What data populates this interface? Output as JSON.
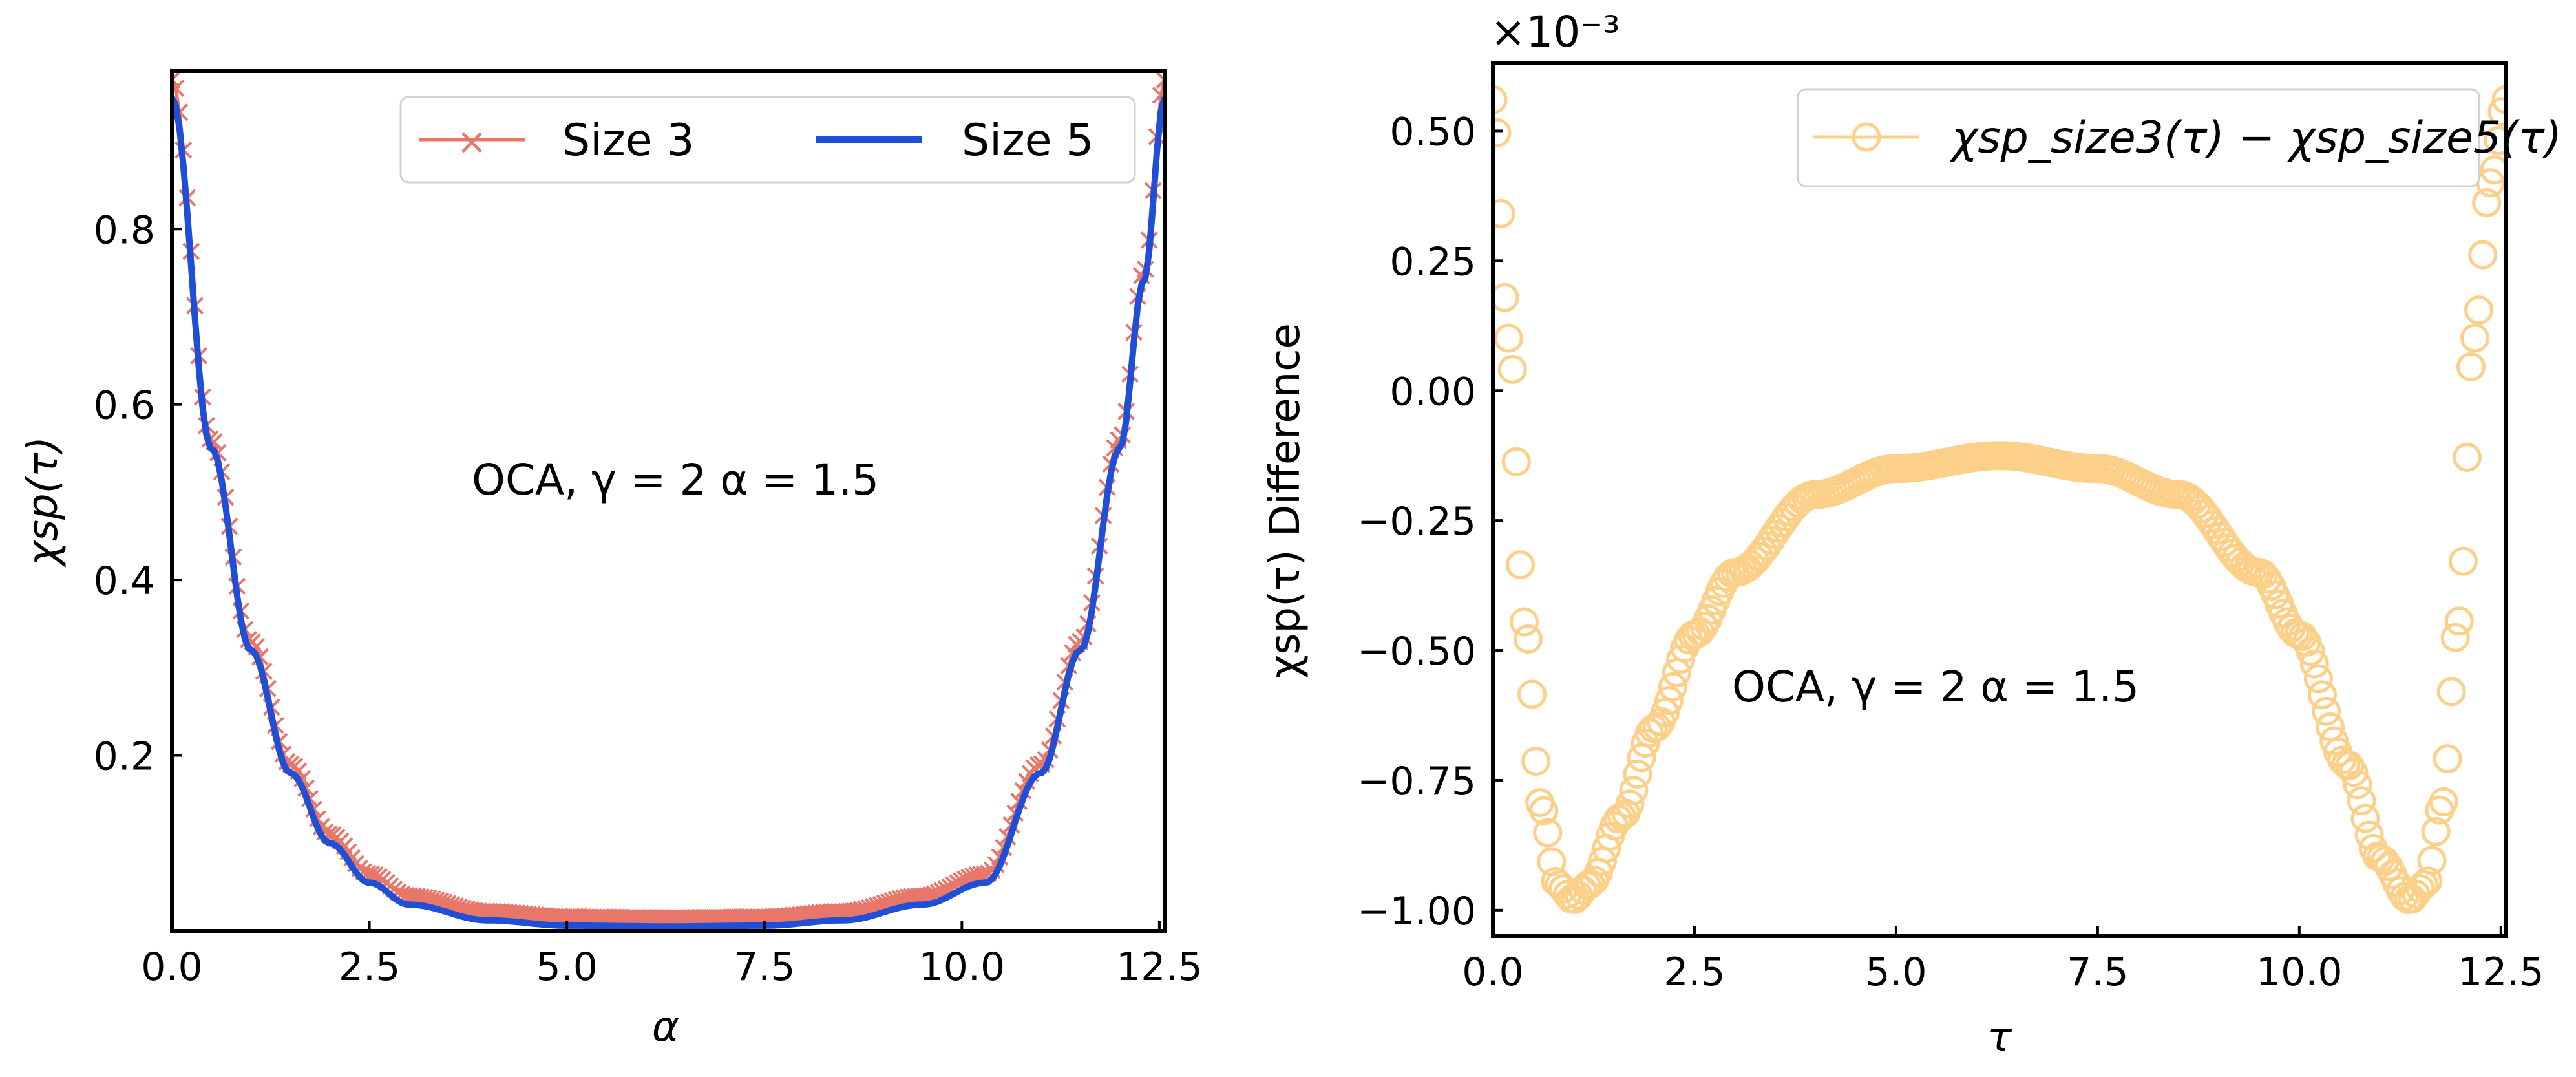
{
  "chart_data": [
    {
      "type": "line",
      "xlabel": "α",
      "ylabel": "χsp(τ)",
      "xlim": [
        0,
        12.566
      ],
      "ylim": [
        0,
        0.98
      ],
      "xticks": [
        "0.0",
        "2.5",
        "5.0",
        "7.5",
        "10.0",
        "12.5"
      ],
      "xtick_values": [
        0,
        2.5,
        5,
        7.5,
        10,
        12.5
      ],
      "yticks": [
        "0.2",
        "0.4",
        "0.6",
        "0.8"
      ],
      "ytick_values": [
        0.2,
        0.4,
        0.6,
        0.8
      ],
      "annotation": "OCA, γ = 2 α = 1.5",
      "legend_position": "top-right",
      "series": [
        {
          "name": "Size 3",
          "color": "#e8776a",
          "marker": "x",
          "x": [
            0,
            0.5,
            1,
            1.5,
            2,
            2.5,
            3,
            4,
            5,
            6.283,
            7.5,
            8.5,
            9.5,
            10.3,
            11,
            11.5,
            12,
            12.3,
            12.566
          ],
          "y": [
            0.97,
            0.56,
            0.33,
            0.19,
            0.11,
            0.065,
            0.04,
            0.022,
            0.016,
            0.015,
            0.016,
            0.022,
            0.04,
            0.065,
            0.19,
            0.33,
            0.56,
            0.75,
            0.97
          ]
        },
        {
          "name": "Size 5",
          "color": "#1f4fd6",
          "marker": "none",
          "x": [
            0,
            0.5,
            1,
            1.5,
            2,
            2.5,
            3,
            4,
            5,
            6.283,
            7.5,
            8.5,
            9.5,
            10.3,
            11,
            11.5,
            12,
            12.3,
            12.566
          ],
          "y": [
            0.95,
            0.55,
            0.32,
            0.18,
            0.1,
            0.055,
            0.03,
            0.012,
            0.006,
            0.005,
            0.006,
            0.012,
            0.03,
            0.055,
            0.18,
            0.32,
            0.55,
            0.74,
            0.95
          ]
        }
      ]
    },
    {
      "type": "line",
      "xlabel": "τ",
      "ylabel": "χsp(τ) Difference",
      "offset_text": "×10⁻³",
      "xlim": [
        0,
        12.566
      ],
      "ylim": [
        -1.05,
        0.63
      ],
      "xticks": [
        "0.0",
        "2.5",
        "5.0",
        "7.5",
        "10.0",
        "12.5"
      ],
      "xtick_values": [
        0,
        2.5,
        5,
        7.5,
        10,
        12.5
      ],
      "yticks": [
        "−1.00",
        "−0.75",
        "−0.50",
        "−0.25",
        "0.00",
        "0.25",
        "0.50"
      ],
      "ytick_values": [
        -1,
        -0.75,
        -0.5,
        -0.25,
        0,
        0.25,
        0.5
      ],
      "annotation": "OCA, γ = 2 α = 1.5",
      "legend_position": "top-right",
      "series": [
        {
          "name": "χsp_size3(τ) − χsp_size5(τ)",
          "color": "#fdd08a",
          "marker": "o",
          "x": [
            0,
            0.2,
            0.4,
            0.6,
            0.8,
            1.0,
            1.2,
            1.6,
            2.0,
            2.5,
            3.0,
            4.0,
            5.0,
            6.283,
            7.5,
            8.5,
            9.5,
            10.0,
            10.6,
            11.0,
            11.37,
            11.57,
            11.77,
            11.97,
            12.17,
            12.37,
            12.566
          ],
          "y": [
            0.56,
            0.1,
            -0.45,
            -0.8,
            -0.95,
            -0.98,
            -0.95,
            -0.82,
            -0.65,
            -0.47,
            -0.35,
            -0.2,
            -0.15,
            -0.125,
            -0.15,
            -0.2,
            -0.35,
            -0.47,
            -0.72,
            -0.9,
            -0.98,
            -0.95,
            -0.8,
            -0.45,
            0.1,
            0.4,
            0.56
          ]
        }
      ]
    }
  ]
}
